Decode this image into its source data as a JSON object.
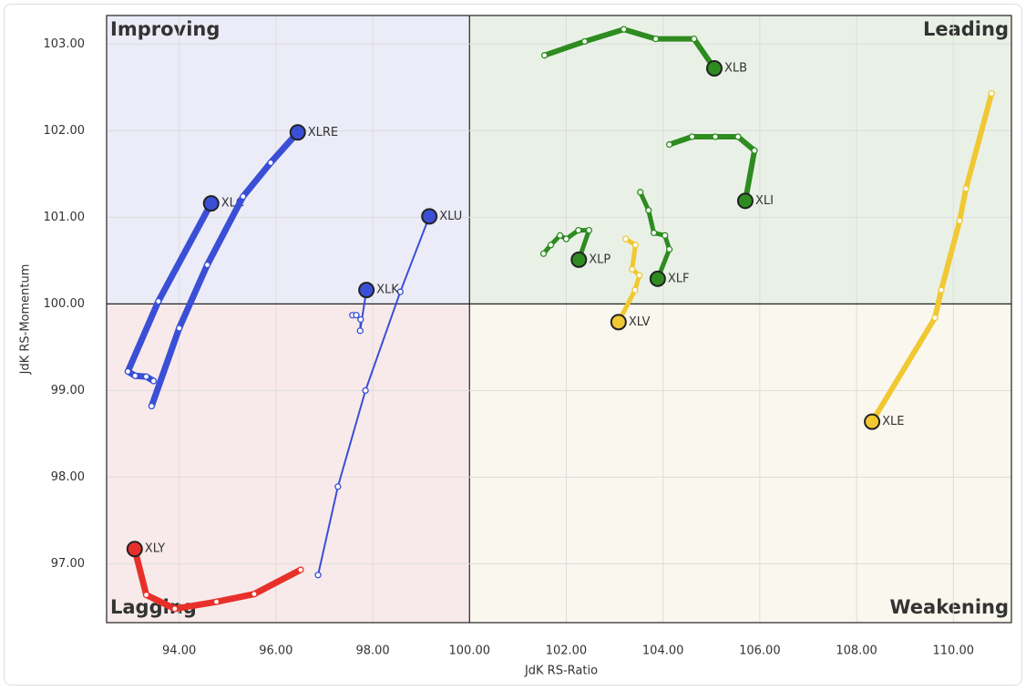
{
  "chart_data": {
    "type": "line",
    "xlabel": "JdK RS-Ratio",
    "ylabel": "JdK RS-Momentum",
    "xlim": [
      92.5,
      111.2
    ],
    "ylim": [
      96.32,
      103.33
    ],
    "xticks": [
      {
        "value": 94,
        "label": "94.00"
      },
      {
        "value": 96,
        "label": "96.00"
      },
      {
        "value": 98,
        "label": "98.00"
      },
      {
        "value": 100,
        "label": "100.00"
      },
      {
        "value": 102,
        "label": "102.00"
      },
      {
        "value": 104,
        "label": "104.00"
      },
      {
        "value": 106,
        "label": "106.00"
      },
      {
        "value": 108,
        "label": "108.00"
      },
      {
        "value": 110,
        "label": "110.00"
      }
    ],
    "yticks": [
      {
        "value": 97,
        "label": "97.00"
      },
      {
        "value": 98,
        "label": "98.00"
      },
      {
        "value": 99,
        "label": "99.00"
      },
      {
        "value": 100,
        "label": "100.00"
      },
      {
        "value": 101,
        "label": "101.00"
      },
      {
        "value": 102,
        "label": "102.00"
      },
      {
        "value": 103,
        "label": "103.00"
      }
    ],
    "grid": true,
    "quadrants": {
      "improving": "Improving",
      "leading": "Leading",
      "lagging": "Lagging",
      "weakening": "Weakening"
    },
    "series": [
      {
        "name": "XLB",
        "color": "#2e8b20",
        "line_width": 6,
        "x": [
          101.55,
          102.38,
          103.19,
          103.85,
          104.64,
          105.06
        ],
        "y": [
          102.87,
          103.03,
          103.17,
          103.06,
          103.06,
          102.72
        ]
      },
      {
        "name": "XLI",
        "color": "#2e8b20",
        "line_width": 6,
        "x": [
          104.13,
          104.6,
          105.08,
          105.55,
          105.89,
          105.7
        ],
        "y": [
          101.84,
          101.93,
          101.93,
          101.93,
          101.77,
          101.19
        ]
      },
      {
        "name": "XLF",
        "color": "#2e8b20",
        "line_width": 5,
        "x": [
          103.53,
          103.7,
          103.81,
          104.04,
          104.13,
          103.89
        ],
        "y": [
          101.29,
          101.08,
          100.82,
          100.79,
          100.63,
          100.29
        ]
      },
      {
        "name": "XLP",
        "color": "#2e8b20",
        "line_width": 5,
        "x": [
          101.53,
          101.68,
          101.87,
          102.0,
          102.25,
          102.47,
          102.26
        ],
        "y": [
          100.58,
          100.68,
          100.79,
          100.75,
          100.85,
          100.85,
          100.51
        ]
      },
      {
        "name": "XLV",
        "color": "#f0c832",
        "line_width": 5,
        "x": [
          103.23,
          103.43,
          103.36,
          103.51,
          103.42,
          103.08
        ],
        "y": [
          100.75,
          100.68,
          100.4,
          100.33,
          100.16,
          99.79
        ]
      },
      {
        "name": "XLE",
        "color": "#f0c832",
        "line_width": 6,
        "x": [
          110.79,
          110.26,
          110.13,
          109.75,
          109.62,
          108.32
        ],
        "y": [
          102.43,
          101.33,
          100.96,
          100.16,
          99.84,
          98.64
        ]
      },
      {
        "name": "XLY",
        "color": "#e8302a",
        "line_width": 7,
        "x": [
          96.51,
          95.55,
          94.77,
          93.91,
          93.32,
          93.08
        ],
        "y": [
          96.93,
          96.65,
          96.56,
          96.48,
          96.64,
          97.17
        ]
      },
      {
        "name": "XLU",
        "color": "#3a4fd6",
        "line_width": 2,
        "x": [
          96.87,
          97.28,
          97.85,
          98.57,
          99.17
        ],
        "y": [
          96.87,
          97.89,
          99.0,
          100.14,
          101.01
        ]
      },
      {
        "name": "XLK",
        "color": "#3a4fd6",
        "line_width": 2,
        "x": [
          97.58,
          97.66,
          97.75,
          97.74,
          97.87
        ],
        "y": [
          99.87,
          99.87,
          99.82,
          99.69,
          100.16
        ]
      },
      {
        "name": "XLC",
        "color": "#3a4fd6",
        "line_width": 7,
        "x": [
          93.47,
          93.32,
          93.09,
          92.94,
          93.57,
          94.66
        ],
        "y": [
          99.11,
          99.16,
          99.17,
          99.22,
          100.03,
          101.16
        ]
      },
      {
        "name": "XLRE",
        "color": "#3a4fd6",
        "line_width": 7,
        "x": [
          93.43,
          94.0,
          94.58,
          95.32,
          95.89,
          96.45
        ],
        "y": [
          98.82,
          99.72,
          100.45,
          101.24,
          101.63,
          101.98
        ]
      }
    ]
  }
}
